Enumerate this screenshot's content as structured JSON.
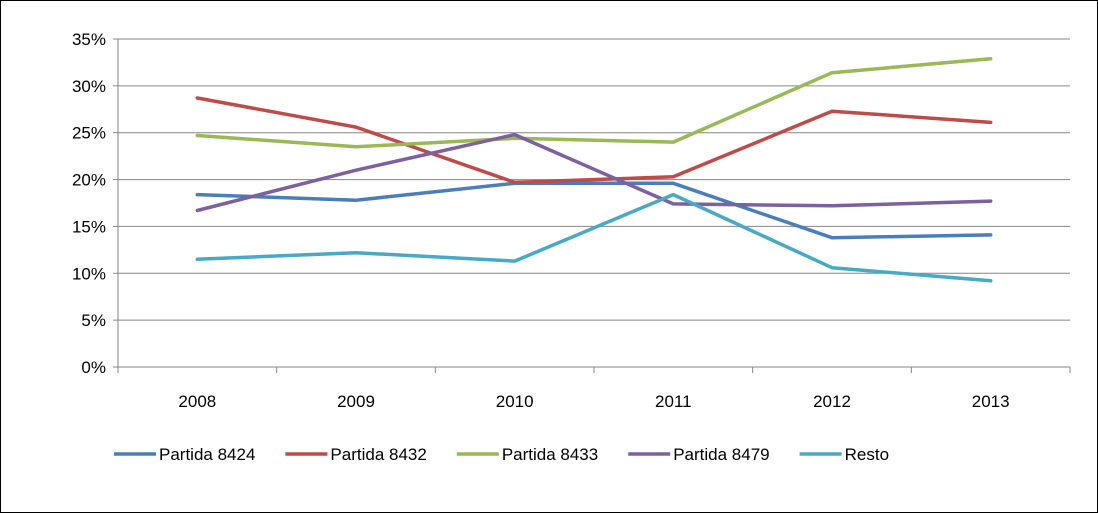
{
  "chart_data": {
    "type": "line",
    "categories": [
      "2008",
      "2009",
      "2010",
      "2011",
      "2012",
      "2013"
    ],
    "ylim": [
      0,
      35
    ],
    "yticks": [
      0,
      5,
      10,
      15,
      20,
      25,
      30,
      35
    ],
    "ytick_labels": [
      "0%",
      "5%",
      "10%",
      "15%",
      "20%",
      "25%",
      "30%",
      "35%"
    ],
    "grid": true,
    "legend_position": "bottom",
    "series": [
      {
        "name": "Partida 8424",
        "color": "#4a7ebb",
        "values": [
          18.4,
          17.8,
          19.6,
          19.6,
          13.8,
          14.1
        ]
      },
      {
        "name": "Partida 8432",
        "color": "#be4b48",
        "values": [
          28.7,
          25.6,
          19.7,
          20.3,
          27.3,
          26.1
        ]
      },
      {
        "name": "Partida 8433",
        "color": "#98b954",
        "values": [
          24.7,
          23.5,
          24.4,
          24.0,
          31.4,
          32.9
        ]
      },
      {
        "name": "Partida 8479",
        "color": "#7d60a0",
        "values": [
          16.7,
          21.0,
          24.8,
          17.4,
          17.2,
          17.7
        ]
      },
      {
        "name": "Resto",
        "color": "#46aac5",
        "values": [
          11.5,
          12.2,
          11.3,
          18.4,
          10.6,
          9.2
        ]
      }
    ]
  }
}
